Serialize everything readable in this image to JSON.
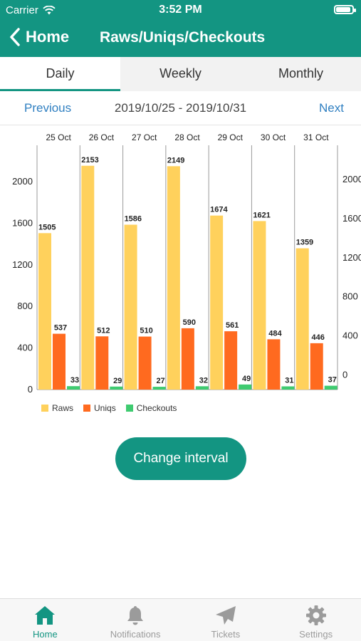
{
  "status": {
    "carrier": "Carrier",
    "time": "3:52 PM"
  },
  "nav": {
    "back_label": "Home",
    "title": "Raws/Uniqs/Checkouts"
  },
  "tabs": [
    {
      "label": "Daily",
      "active": true
    },
    {
      "label": "Weekly",
      "active": false
    },
    {
      "label": "Monthly",
      "active": false
    }
  ],
  "date_nav": {
    "previous": "Previous",
    "range": "2019/10/25 - 2019/10/31",
    "next": "Next"
  },
  "button": {
    "change_interval": "Change interval"
  },
  "tabbar": [
    {
      "label": "Home",
      "icon": "home-icon",
      "active": true
    },
    {
      "label": "Notifications",
      "icon": "bell-icon",
      "active": false
    },
    {
      "label": "Tickets",
      "icon": "paper-plane-icon",
      "active": false
    },
    {
      "label": "Settings",
      "icon": "gear-icon",
      "active": false
    }
  ],
  "colors": {
    "accent": "#139582",
    "raws": "#FFD15C",
    "uniqs": "#FF6A1F",
    "checkouts": "#3FCB70",
    "link": "#2f7fc1"
  },
  "chart_data": {
    "type": "bar",
    "categories": [
      "25 Oct",
      "26 Oct",
      "27 Oct",
      "28 Oct",
      "29 Oct",
      "30 Oct",
      "31 Oct"
    ],
    "series": [
      {
        "name": "Raws",
        "values": [
          1505,
          2153,
          1586,
          2149,
          1674,
          1621,
          1359
        ]
      },
      {
        "name": "Uniqs",
        "values": [
          537,
          512,
          510,
          590,
          561,
          484,
          446
        ]
      },
      {
        "name": "Checkouts",
        "values": [
          33,
          29,
          27,
          32,
          49,
          31,
          37
        ]
      }
    ],
    "ylim": [
      0,
      2350
    ],
    "y_ticks_left": [
      0,
      400,
      800,
      1200,
      1600,
      2000
    ],
    "y_ticks_right": [
      0,
      400,
      800,
      1200,
      1600,
      2000
    ],
    "right_axis_ylim": [
      -150,
      2350
    ],
    "grid": "vertical",
    "legend_position": "bottom-left"
  }
}
